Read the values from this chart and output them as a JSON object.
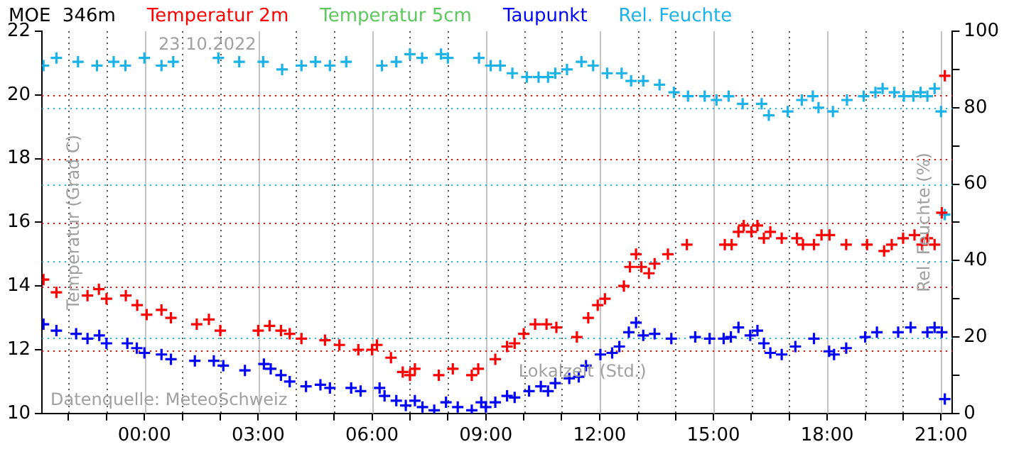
{
  "chart_data": {
    "type": "scatter",
    "title": "MOE  346m",
    "marker": "cross",
    "legend": "top",
    "grid": true,
    "xlabel": "Lokalzeit (Std.)",
    "ylabel": "Temperatur (Grad C)",
    "y2label": "Rel. Feuchte (%)",
    "annotations": [
      "23.10.2022",
      "Datenquelle: MeteoSchweiz"
    ],
    "xlim": [
      -2.7,
      21.3
    ],
    "xticks": [
      {
        "value": -2,
        "label": null
      },
      {
        "value": -1,
        "label": null
      },
      {
        "value": 0,
        "label": "00:00"
      },
      {
        "value": 1,
        "label": null
      },
      {
        "value": 2,
        "label": null
      },
      {
        "value": 3,
        "label": "03:00"
      },
      {
        "value": 4,
        "label": null
      },
      {
        "value": 5,
        "label": null
      },
      {
        "value": 6,
        "label": "06:00"
      },
      {
        "value": 7,
        "label": null
      },
      {
        "value": 8,
        "label": null
      },
      {
        "value": 9,
        "label": "09:00"
      },
      {
        "value": 10,
        "label": null
      },
      {
        "value": 11,
        "label": null
      },
      {
        "value": 12,
        "label": "12:00"
      },
      {
        "value": 13,
        "label": null
      },
      {
        "value": 14,
        "label": null
      },
      {
        "value": 15,
        "label": "15:00"
      },
      {
        "value": 16,
        "label": null
      },
      {
        "value": 17,
        "label": null
      },
      {
        "value": 18,
        "label": "18:00"
      },
      {
        "value": 19,
        "label": null
      },
      {
        "value": 20,
        "label": null
      },
      {
        "value": 21,
        "label": "21:00"
      }
    ],
    "ylim": [
      10,
      22
    ],
    "yticks": [
      10,
      12,
      14,
      16,
      18,
      20,
      22
    ],
    "y2lim": [
      0,
      100
    ],
    "y2ticks": [
      0,
      {
        "value": 10,
        "label": null
      },
      20,
      {
        "value": 30,
        "label": null
      },
      40,
      {
        "value": 50,
        "label": null
      },
      60,
      {
        "value": 70,
        "label": null
      },
      80,
      {
        "value": 90,
        "label": null
      },
      100
    ],
    "series": [
      {
        "name": "Temperatur 2m",
        "color": "#ff0000",
        "x": [
          -2.66,
          -2.32,
          -1.5,
          -1.2,
          -1.0,
          -0.49,
          -0.19,
          0.06,
          0.45,
          0.7,
          1.38,
          1.7,
          2.0,
          3.0,
          3.3,
          3.6,
          3.83,
          4.14,
          4.76,
          5.14,
          5.64,
          6.0,
          6.13,
          6.5,
          6.81,
          7.0,
          7.13,
          7.76,
          8.13,
          8.63,
          8.8,
          9.25,
          9.56,
          9.76,
          10.0,
          10.3,
          10.6,
          10.86,
          11.4,
          11.7,
          11.95,
          12.14,
          12.64,
          12.8,
          12.96,
          13.1,
          13.3,
          13.45,
          13.8,
          14.3,
          15.3,
          15.48,
          15.66,
          15.8,
          16.0,
          16.16,
          16.33,
          16.5,
          16.8,
          17.2,
          17.36,
          17.65,
          17.85,
          18.06,
          18.5,
          19.05,
          19.5,
          19.7,
          20.0,
          20.3,
          20.5,
          20.64,
          20.83,
          21.02,
          21.1
        ],
        "values": [
          14.2,
          13.8,
          13.7,
          13.9,
          13.6,
          13.7,
          13.4,
          13.1,
          13.25,
          13.0,
          12.8,
          12.95,
          12.6,
          12.6,
          12.75,
          12.6,
          12.5,
          12.35,
          12.3,
          12.15,
          12.0,
          12.0,
          12.15,
          11.75,
          11.3,
          11.2,
          11.4,
          11.2,
          11.4,
          11.2,
          11.4,
          11.7,
          12.1,
          12.2,
          12.5,
          12.8,
          12.8,
          12.7,
          12.4,
          13.0,
          13.4,
          13.6,
          14.0,
          14.6,
          15.0,
          14.6,
          14.4,
          14.7,
          15.0,
          15.3,
          15.3,
          15.3,
          15.7,
          15.9,
          15.7,
          15.9,
          15.5,
          15.7,
          15.5,
          15.5,
          15.3,
          15.3,
          15.6,
          15.6,
          15.3,
          15.3,
          15.1,
          15.3,
          15.5,
          15.6,
          15.3,
          15.5,
          15.3,
          16.3,
          20.6
        ]
      },
      {
        "name": "Temperatur 5cm",
        "color": "#5cc85c"
      },
      {
        "name": "Taupunkt",
        "color": "#0000ff",
        "x": [
          -2.66,
          -2.32,
          -1.8,
          -1.5,
          -1.19,
          -1.0,
          -0.45,
          -0.2,
          0,
          0.45,
          0.7,
          1.33,
          1.83,
          2.08,
          2.65,
          3.15,
          3.33,
          3.6,
          3.83,
          4.26,
          4.64,
          4.89,
          5.45,
          5.7,
          6.2,
          6.33,
          6.64,
          6.89,
          7.13,
          7.33,
          7.64,
          7.95,
          8.26,
          8.63,
          8.88,
          9.0,
          9.25,
          9.56,
          9.76,
          10.14,
          10.45,
          10.64,
          10.83,
          11.2,
          11.45,
          11.64,
          12.02,
          12.33,
          12.52,
          12.77,
          12.96,
          13.15,
          13.45,
          13.89,
          14.52,
          14.9,
          15.27,
          15.46,
          15.66,
          15.97,
          16.16,
          16.33,
          16.5,
          16.8,
          17.16,
          17.65,
          18.05,
          18.18,
          18.5,
          19.0,
          19.31,
          19.87,
          20.2,
          20.64,
          20.83,
          21.02,
          21.1
        ],
        "values": [
          12.8,
          12.6,
          12.5,
          12.35,
          12.45,
          12.2,
          12.2,
          12.05,
          11.9,
          11.85,
          11.7,
          11.65,
          11.65,
          11.5,
          11.35,
          11.55,
          11.4,
          11.2,
          11.0,
          10.85,
          10.9,
          10.8,
          10.8,
          10.7,
          10.8,
          10.55,
          10.4,
          10.25,
          10.4,
          10.2,
          10.1,
          10.35,
          10.2,
          10.1,
          10.35,
          10.2,
          10.35,
          10.55,
          10.5,
          10.7,
          10.85,
          10.7,
          10.95,
          11.1,
          11.15,
          11.5,
          11.85,
          11.9,
          12.1,
          12.55,
          12.85,
          12.45,
          12.5,
          12.35,
          12.4,
          12.35,
          12.35,
          12.4,
          12.7,
          12.45,
          12.6,
          12.2,
          11.9,
          11.85,
          12.1,
          12.35,
          11.95,
          11.85,
          12.05,
          12.4,
          12.55,
          12.55,
          12.7,
          12.55,
          12.7,
          12.55,
          10.45
        ]
      },
      {
        "name": "Rel. Feuchte",
        "color": "#1ab2e8",
        "axis": "y2",
        "x": [
          -2.66,
          -2.32,
          -1.75,
          -1.25,
          -0.81,
          -0.5,
          0,
          0.45,
          0.76,
          1.95,
          2.5,
          3.13,
          3.63,
          4.14,
          4.51,
          4.89,
          5.32,
          6.26,
          6.64,
          7.0,
          7.32,
          7.82,
          8.0,
          8.82,
          9.13,
          9.38,
          9.7,
          10.08,
          10.39,
          10.64,
          10.83,
          11.14,
          11.52,
          11.83,
          12.2,
          12.58,
          12.83,
          13.15,
          13.58,
          13.96,
          14.33,
          14.77,
          15.08,
          15.4,
          15.77,
          16.27,
          16.46,
          16.96,
          17.33,
          17.62,
          17.77,
          18.15,
          18.52,
          18.96,
          19.27,
          19.46,
          19.77,
          20.02,
          20.27,
          20.46,
          20.64,
          20.83,
          21.0,
          21.1
        ],
        "values": [
          91,
          93,
          92,
          91,
          92,
          91,
          93,
          91,
          92,
          93,
          92,
          92,
          90,
          91,
          92,
          91,
          92,
          91,
          92,
          94,
          93,
          94,
          93,
          93,
          91,
          91,
          89,
          88,
          88,
          88,
          89,
          90,
          92,
          91,
          89,
          89,
          87,
          87,
          86,
          84,
          83,
          83,
          82,
          83,
          81,
          81,
          78,
          79,
          82,
          83,
          80,
          79,
          82,
          83,
          84,
          85,
          84,
          83,
          83,
          84,
          83,
          85,
          79,
          52
        ]
      }
    ]
  }
}
